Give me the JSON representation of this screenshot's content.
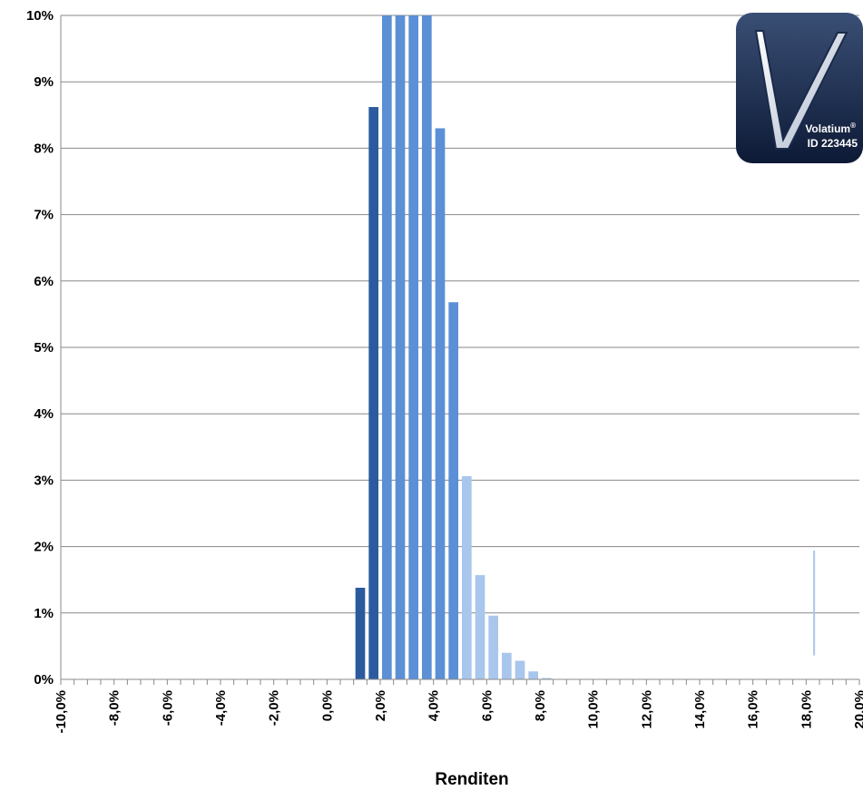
{
  "chart_data": {
    "type": "bar",
    "title": "",
    "xlabel": "Renditen",
    "ylabel": "",
    "ylim": [
      0,
      10
    ],
    "xlim": [
      -10,
      20
    ],
    "y_ticks": [
      {
        "value": 0,
        "label": "0%"
      },
      {
        "value": 1,
        "label": "1%"
      },
      {
        "value": 2,
        "label": "2%"
      },
      {
        "value": 3,
        "label": "3%"
      },
      {
        "value": 4,
        "label": "4%"
      },
      {
        "value": 5,
        "label": "5%"
      },
      {
        "value": 6,
        "label": "6%"
      },
      {
        "value": 7,
        "label": "7%"
      },
      {
        "value": 8,
        "label": "8%"
      },
      {
        "value": 9,
        "label": "9%"
      },
      {
        "value": 10,
        "label": "10%"
      }
    ],
    "x_ticks": [
      {
        "value": -10,
        "label": "-10,0%"
      },
      {
        "value": -8,
        "label": "-8,0%"
      },
      {
        "value": -6,
        "label": "-6,0%"
      },
      {
        "value": -4,
        "label": "-4,0%"
      },
      {
        "value": -2,
        "label": "-2,0%"
      },
      {
        "value": 0,
        "label": "0,0%"
      },
      {
        "value": 2,
        "label": "2,0%"
      },
      {
        "value": 4,
        "label": "4,0%"
      },
      {
        "value": 6,
        "label": "6,0%"
      },
      {
        "value": 8,
        "label": "8,0%"
      },
      {
        "value": 10,
        "label": "10,0%"
      },
      {
        "value": 12,
        "label": "12,0%"
      },
      {
        "value": 14,
        "label": "14,0%"
      },
      {
        "value": 16,
        "label": "16,0%"
      },
      {
        "value": 18,
        "label": "18,0%"
      },
      {
        "value": 20,
        "label": "20,0%"
      }
    ],
    "bin_width": 0.5,
    "grid": true,
    "colors": {
      "dark": "#2b5b9e",
      "mid": "#5b8fd6",
      "light": "#a9c6ec",
      "grid": "#888888"
    },
    "bars": [
      {
        "x": 1.25,
        "value": 1.38,
        "shade": "dark"
      },
      {
        "x": 1.75,
        "value": 8.62,
        "shade": "dark"
      },
      {
        "x": 2.25,
        "value": 10.0,
        "shade": "mid"
      },
      {
        "x": 2.75,
        "value": 10.0,
        "shade": "mid"
      },
      {
        "x": 3.25,
        "value": 10.0,
        "shade": "mid"
      },
      {
        "x": 3.75,
        "value": 10.0,
        "shade": "mid"
      },
      {
        "x": 4.25,
        "value": 8.3,
        "shade": "mid"
      },
      {
        "x": 4.75,
        "value": 5.68,
        "shade": "mid"
      },
      {
        "x": 5.25,
        "value": 3.06,
        "shade": "light"
      },
      {
        "x": 5.75,
        "value": 1.57,
        "shade": "light"
      },
      {
        "x": 6.25,
        "value": 0.96,
        "shade": "light"
      },
      {
        "x": 6.75,
        "value": 0.4,
        "shade": "light"
      },
      {
        "x": 7.25,
        "value": 0.28,
        "shade": "light"
      },
      {
        "x": 7.75,
        "value": 0.12,
        "shade": "light"
      },
      {
        "x": 8.25,
        "value": 0.02,
        "shade": "light"
      }
    ],
    "marker": {
      "x": 18.3,
      "from": 0.36,
      "to": 1.94,
      "shade": "light"
    }
  },
  "logo": {
    "brand": "Volatium",
    "registered": "®",
    "id_text": "ID 223445"
  }
}
